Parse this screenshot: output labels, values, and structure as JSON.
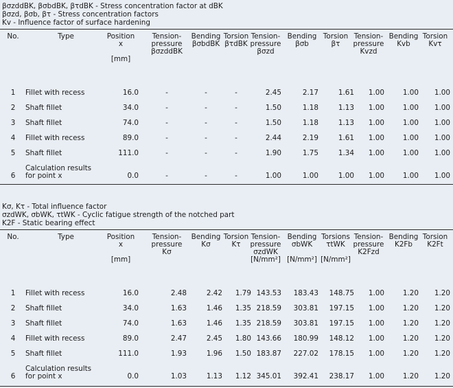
{
  "table1": {
    "legend": [
      "βσzddBK, βσbdBK, βτdBK - Stress concentration factor at dBK",
      "βσzd, βσb, βτ - Stress concentration factors",
      "Kv - Influence factor of surface hardening"
    ],
    "headers": [
      "No.",
      "Type",
      "Position\nx\n\n[mm]",
      "Tension-\npressure\nβσzddBK",
      "Bending\nβσbdBK",
      "Torsion\nβτdBK",
      "Tension-\npressure\nβσzd",
      "Bending\nβσb",
      "Torsion\nβτ",
      "Tension-\npressure\nKvzd",
      "Bending\nKvb",
      "Torsion\nKvτ"
    ],
    "rows": [
      [
        "1",
        "Fillet with recess",
        "16.0",
        "-",
        "-",
        "-",
        "2.45",
        "2.17",
        "1.61",
        "1.00",
        "1.00",
        "1.00"
      ],
      [
        "2",
        "Shaft fillet",
        "34.0",
        "-",
        "-",
        "-",
        "1.50",
        "1.18",
        "1.13",
        "1.00",
        "1.00",
        "1.00"
      ],
      [
        "3",
        "Shaft fillet",
        "74.0",
        "-",
        "-",
        "-",
        "1.50",
        "1.18",
        "1.13",
        "1.00",
        "1.00",
        "1.00"
      ],
      [
        "4",
        "Fillet with recess",
        "89.0",
        "-",
        "-",
        "-",
        "2.44",
        "2.19",
        "1.61",
        "1.00",
        "1.00",
        "1.00"
      ],
      [
        "5",
        "Shaft fillet",
        "111.0",
        "-",
        "-",
        "-",
        "1.90",
        "1.75",
        "1.34",
        "1.00",
        "1.00",
        "1.00"
      ],
      [
        "6",
        "Calculation results\nfor point x",
        "0.0",
        "-",
        "-",
        "-",
        "1.00",
        "1.00",
        "1.00",
        "1.00",
        "1.00",
        "1.00"
      ]
    ]
  },
  "table2": {
    "legend": [
      "Kσ, Kτ - Total influence factor",
      "σzdWK, σbWK, τtWK - Cyclic fatigue strength of the notched part",
      "K2F - Static bearing effect"
    ],
    "headers": [
      "No.",
      "Type",
      "Position\nx\n\n[mm]",
      "Tension-\npressure\nKσ",
      "Bending\nKσ",
      "Torsion\nKτ",
      "Tension-\npressure\nσzdWK\n[N/mm²]",
      "Bending\nσbWK\n\n[N/mm²]",
      "Torsions\nτtWK\n\n[N/mm²]",
      "Tension-\npressure\nK2Fzd",
      "Bending\nK2Fb",
      "Torsion\nK2Ft"
    ],
    "rows": [
      [
        "1",
        "Fillet with recess",
        "16.0",
        "2.48",
        "2.42",
        "1.79",
        "143.53",
        "183.43",
        "148.75",
        "1.00",
        "1.20",
        "1.20"
      ],
      [
        "2",
        "Shaft fillet",
        "34.0",
        "1.63",
        "1.46",
        "1.35",
        "218.59",
        "303.81",
        "197.15",
        "1.00",
        "1.20",
        "1.20"
      ],
      [
        "3",
        "Shaft fillet",
        "74.0",
        "1.63",
        "1.46",
        "1.35",
        "218.59",
        "303.81",
        "197.15",
        "1.00",
        "1.20",
        "1.20"
      ],
      [
        "4",
        "Fillet with recess",
        "89.0",
        "2.47",
        "2.45",
        "1.80",
        "143.66",
        "180.99",
        "148.12",
        "1.00",
        "1.20",
        "1.20"
      ],
      [
        "5",
        "Shaft fillet",
        "111.0",
        "1.93",
        "1.96",
        "1.50",
        "183.87",
        "227.02",
        "178.15",
        "1.00",
        "1.20",
        "1.20"
      ],
      [
        "6",
        "Calculation results\nfor point x",
        "0.0",
        "1.03",
        "1.13",
        "1.12",
        "345.01",
        "392.41",
        "238.17",
        "1.00",
        "1.20",
        "1.20"
      ]
    ]
  }
}
